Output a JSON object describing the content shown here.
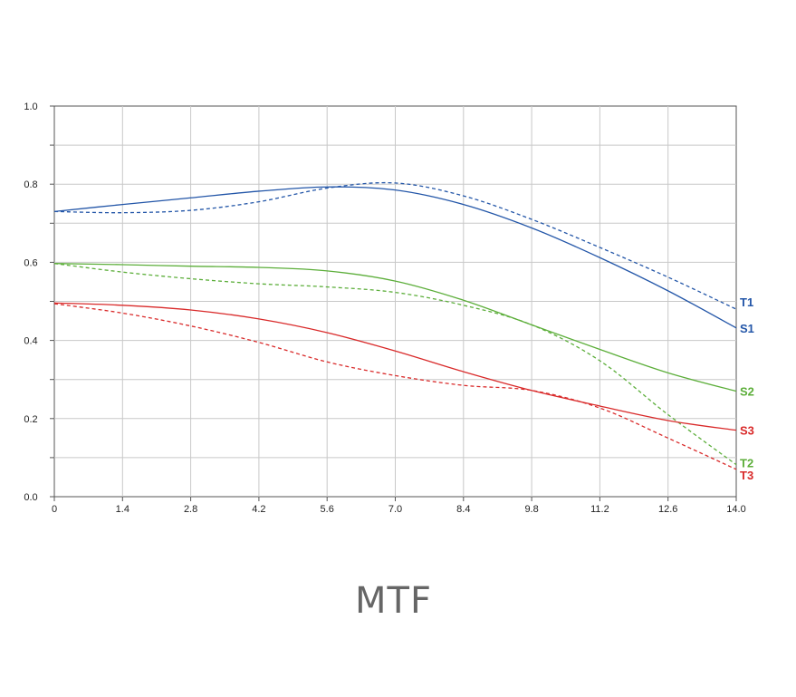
{
  "chart_data": {
    "type": "line",
    "title": "MTF",
    "xlabel": "",
    "ylabel": "",
    "xlim": [
      0,
      14.0
    ],
    "ylim": [
      0,
      1.0
    ],
    "x_ticks": [
      "0",
      "1.4",
      "2.8",
      "4.2",
      "5.6",
      "7.0",
      "8.4",
      "9.8",
      "11.2",
      "12.6",
      "14.0"
    ],
    "y_ticks": [
      "0.0",
      "0.2",
      "0.4",
      "0.6",
      "0.8",
      "1.0"
    ],
    "grid": true,
    "series": [
      {
        "name": "T1",
        "color": "#2356a8",
        "dashed": true,
        "x": [
          0,
          1.4,
          2.8,
          4.2,
          5.6,
          7.0,
          8.4,
          9.8,
          11.2,
          12.6,
          14.0
        ],
        "y": [
          0.73,
          0.727,
          0.733,
          0.755,
          0.79,
          0.803,
          0.77,
          0.71,
          0.638,
          0.562,
          0.48
        ]
      },
      {
        "name": "S1",
        "color": "#2356a8",
        "dashed": false,
        "x": [
          0,
          1.4,
          2.8,
          4.2,
          5.6,
          7.0,
          8.4,
          9.8,
          11.2,
          12.6,
          14.0
        ],
        "y": [
          0.73,
          0.748,
          0.765,
          0.782,
          0.793,
          0.785,
          0.748,
          0.688,
          0.612,
          0.527,
          0.432
        ]
      },
      {
        "name": "S2",
        "color": "#5cae3a",
        "dashed": false,
        "x": [
          0,
          1.4,
          2.8,
          4.2,
          5.6,
          7.0,
          8.4,
          9.8,
          11.2,
          12.6,
          14.0
        ],
        "y": [
          0.597,
          0.594,
          0.59,
          0.587,
          0.578,
          0.552,
          0.503,
          0.44,
          0.377,
          0.317,
          0.27
        ]
      },
      {
        "name": "T2",
        "color": "#5cae3a",
        "dashed": true,
        "x": [
          0,
          1.4,
          2.8,
          4.2,
          5.6,
          7.0,
          8.4,
          9.8,
          11.2,
          12.6,
          14.0
        ],
        "y": [
          0.597,
          0.575,
          0.558,
          0.545,
          0.537,
          0.523,
          0.49,
          0.44,
          0.348,
          0.21,
          0.082
        ]
      },
      {
        "name": "S3",
        "color": "#d92a2a",
        "dashed": false,
        "x": [
          0,
          1.4,
          2.8,
          4.2,
          5.6,
          7.0,
          8.4,
          9.8,
          11.2,
          12.6,
          14.0
        ],
        "y": [
          0.496,
          0.49,
          0.478,
          0.455,
          0.42,
          0.373,
          0.32,
          0.272,
          0.232,
          0.195,
          0.17
        ]
      },
      {
        "name": "T3",
        "color": "#d92a2a",
        "dashed": true,
        "x": [
          0,
          1.4,
          2.8,
          4.2,
          5.6,
          7.0,
          8.4,
          9.8,
          11.2,
          12.6,
          14.0
        ],
        "y": [
          0.494,
          0.47,
          0.437,
          0.395,
          0.345,
          0.31,
          0.285,
          0.272,
          0.227,
          0.15,
          0.07
        ]
      }
    ]
  }
}
